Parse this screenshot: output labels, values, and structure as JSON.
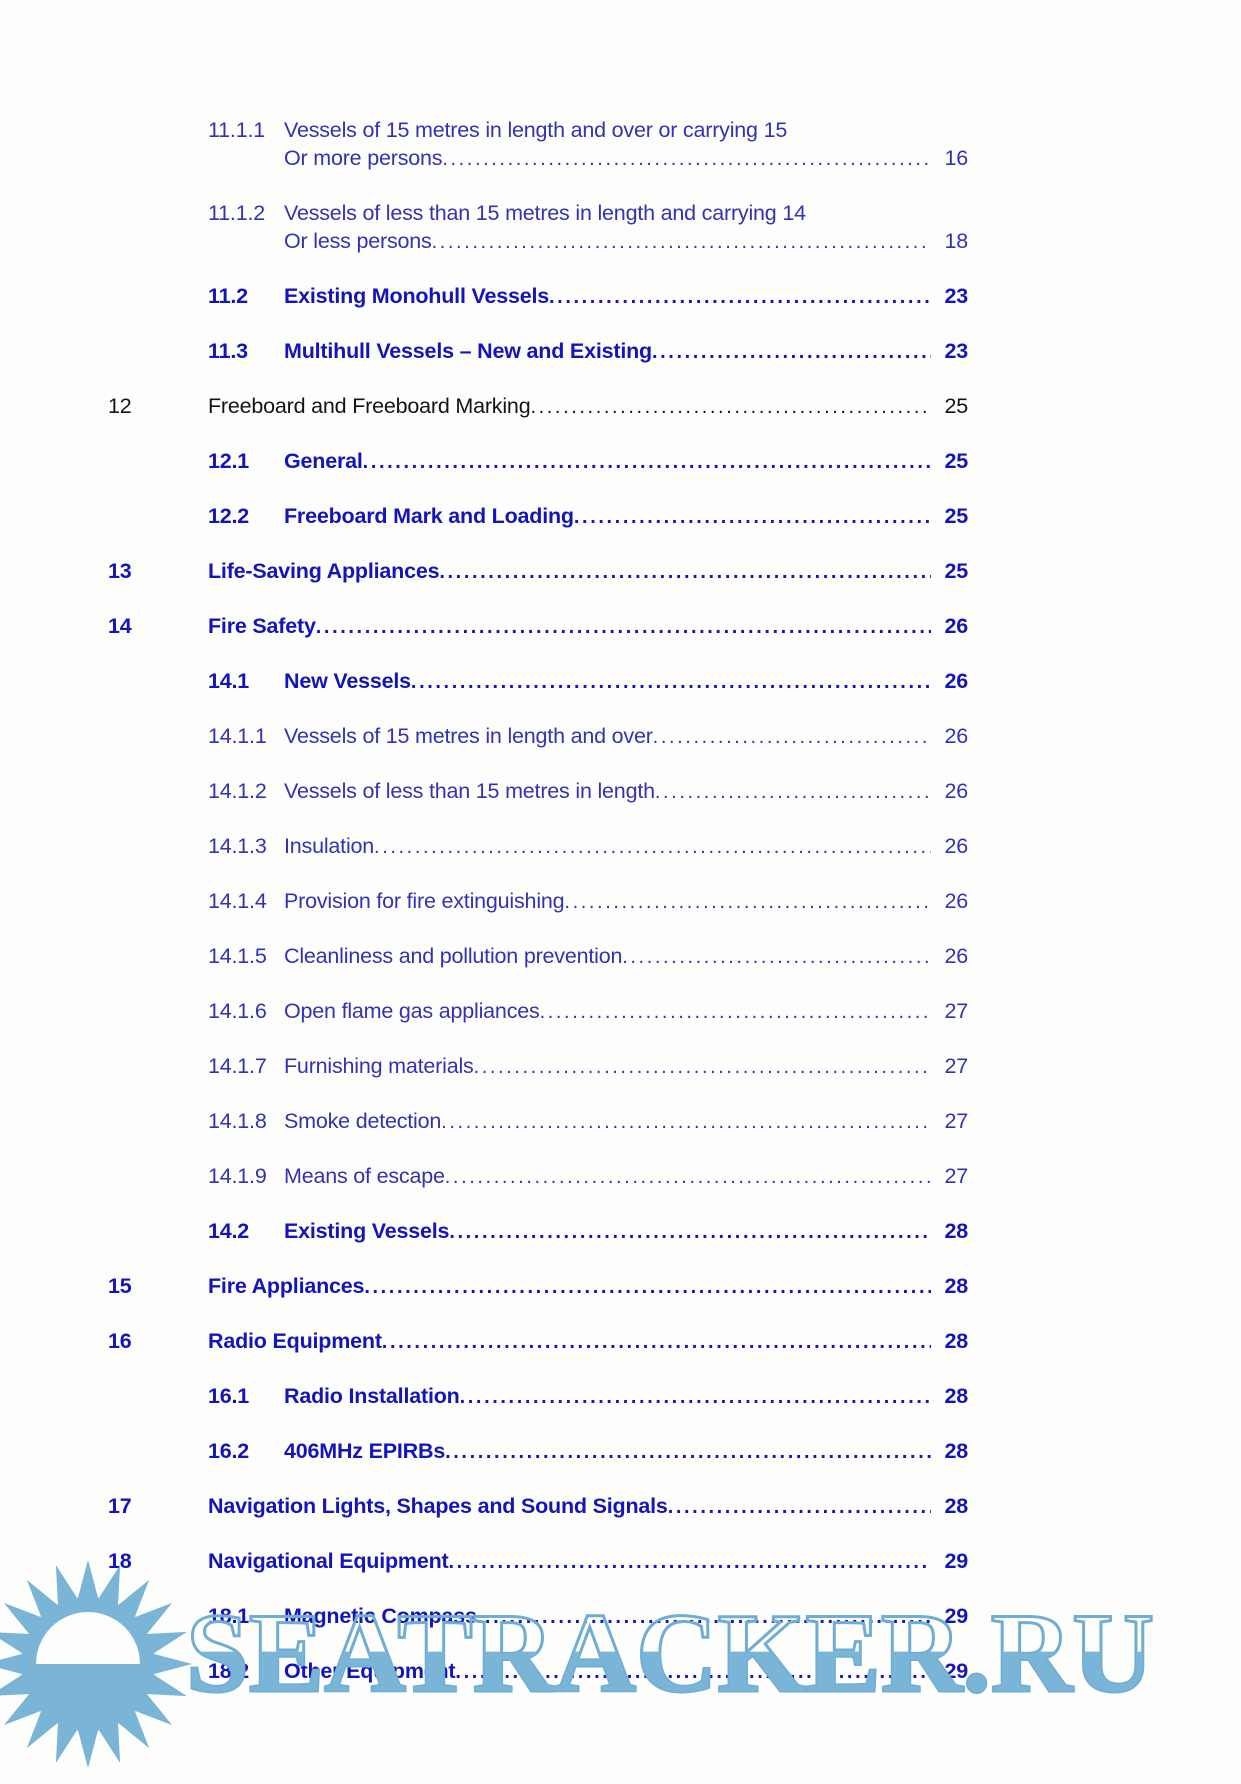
{
  "page": {
    "background": "#fdfdfb",
    "colors": {
      "toc_blue_bold": "#1414bb",
      "toc_blue_regular": "#3232b2",
      "toc_black": "#141414",
      "watermark_blue": "#7ab4d6"
    }
  },
  "toc": {
    "entries": [
      {
        "num": "11.1.1",
        "title": "Vessels of 15 metres in length and over or carrying 15",
        "title2": "Or more persons",
        "page": "16",
        "level": 3,
        "style": "regular"
      },
      {
        "num": "11.1.2",
        "title": "Vessels of less than 15 metres in length and carrying 14",
        "title2": "Or less persons",
        "page": "18",
        "level": 3,
        "style": "regular"
      },
      {
        "num": "11.2",
        "title": "Existing Monohull Vessels",
        "page": "23",
        "level": 2,
        "style": "bold"
      },
      {
        "num": "11.3",
        "title": "Multihull Vessels – New and Existing",
        "page": "23",
        "level": 2,
        "style": "bold"
      },
      {
        "num": "12",
        "title": "Freeboard and Freeboard Marking",
        "page": "25",
        "level": 1,
        "style": "black"
      },
      {
        "num": "12.1",
        "title": "General",
        "page": "25",
        "level": 2,
        "style": "bold"
      },
      {
        "num": "12.2",
        "title": "Freeboard Mark and Loading",
        "page": "25",
        "level": 2,
        "style": "bold"
      },
      {
        "num": "13",
        "title": "Life-Saving Appliances",
        "page": "25",
        "level": 1,
        "style": "bold"
      },
      {
        "num": "14",
        "title": "Fire Safety",
        "page": "26",
        "level": 1,
        "style": "bold"
      },
      {
        "num": "14.1",
        "title": "New Vessels",
        "page": "26",
        "level": 2,
        "style": "bold"
      },
      {
        "num": "14.1.1",
        "title": "Vessels of 15 metres in length and over",
        "page": "26",
        "level": 3,
        "style": "regular"
      },
      {
        "num": "14.1.2",
        "title": "Vessels of less than 15 metres in length",
        "page": "26",
        "level": 3,
        "style": "regular"
      },
      {
        "num": "14.1.3",
        "title": "Insulation",
        "page": "26",
        "level": 3,
        "style": "regular"
      },
      {
        "num": "14.1.4",
        "title": "Provision for fire extinguishing",
        "page": "26",
        "level": 3,
        "style": "regular"
      },
      {
        "num": "14.1.5",
        "title": "Cleanliness and pollution prevention",
        "page": "26",
        "level": 3,
        "style": "regular"
      },
      {
        "num": "14.1.6",
        "title": "Open flame gas appliances",
        "page": "27",
        "level": 3,
        "style": "regular"
      },
      {
        "num": "14.1.7",
        "title": "Furnishing materials",
        "page": "27",
        "level": 3,
        "style": "regular"
      },
      {
        "num": "14.1.8",
        "title": "Smoke detection",
        "page": "27",
        "level": 3,
        "style": "regular"
      },
      {
        "num": "14.1.9",
        "title": "Means of escape",
        "page": "27",
        "level": 3,
        "style": "regular"
      },
      {
        "num": "14.2",
        "title": "Existing Vessels",
        "page": "28",
        "level": 2,
        "style": "bold"
      },
      {
        "num": "15",
        "title": "Fire Appliances",
        "page": "28",
        "level": 1,
        "style": "bold"
      },
      {
        "num": "16",
        "title": "Radio Equipment",
        "page": "28",
        "level": 1,
        "style": "bold"
      },
      {
        "num": "16.1",
        "title": "Radio Installation",
        "page": "28",
        "level": 2,
        "style": "bold"
      },
      {
        "num": "16.2",
        "title": "406MHz EPIRBs",
        "page": "28",
        "level": 2,
        "style": "bold"
      },
      {
        "num": "17",
        "title": "Navigation Lights, Shapes and Sound Signals",
        "page": "28",
        "level": 1,
        "style": "bold"
      },
      {
        "num": "18",
        "title": "Navigational Equipment",
        "page": "29",
        "level": 1,
        "style": "bold"
      },
      {
        "num": "18.1",
        "title": "Magnetic Compass",
        "page": "29",
        "level": 2,
        "style": "bold"
      },
      {
        "num": "18.2",
        "title": "Other Equipment",
        "page": "29",
        "level": 2,
        "style": "bold"
      }
    ]
  },
  "watermark": {
    "text": "SEATRACKER.RU",
    "logo": "sun-logo"
  }
}
